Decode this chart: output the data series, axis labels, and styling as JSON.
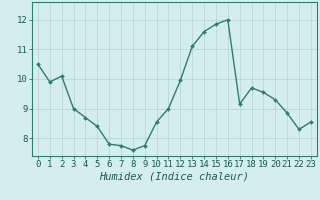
{
  "x": [
    0,
    1,
    2,
    3,
    4,
    5,
    6,
    7,
    8,
    9,
    10,
    11,
    12,
    13,
    14,
    15,
    16,
    17,
    18,
    19,
    20,
    21,
    22,
    23
  ],
  "y": [
    10.5,
    9.9,
    10.1,
    9.0,
    8.7,
    8.4,
    7.8,
    7.75,
    7.6,
    7.75,
    8.55,
    9.0,
    9.95,
    11.1,
    11.6,
    11.85,
    12.0,
    9.15,
    9.7,
    9.55,
    9.3,
    8.85,
    8.3,
    8.55
  ],
  "line_color": "#2e7d6e",
  "marker": "D",
  "marker_size": 2.0,
  "bg_color": "#d4eeec",
  "grid_major_color": "#b8d8d5",
  "grid_minor_color": "#c8e4e2",
  "xlabel": "Humidex (Indice chaleur)",
  "ylabel": "",
  "title": "",
  "ylim": [
    7.4,
    12.6
  ],
  "xlim": [
    -0.5,
    23.5
  ],
  "yticks": [
    8,
    9,
    10,
    11,
    12
  ],
  "xticks": [
    0,
    1,
    2,
    3,
    4,
    5,
    6,
    7,
    8,
    9,
    10,
    11,
    12,
    13,
    14,
    15,
    16,
    17,
    18,
    19,
    20,
    21,
    22,
    23
  ],
  "tick_label_fontsize": 6.5,
  "xlabel_fontsize": 7.5,
  "line_width": 1.0,
  "spine_color": "#2e7d6e"
}
